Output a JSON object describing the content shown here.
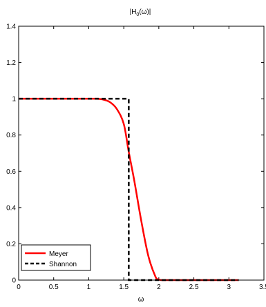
{
  "chart_data": {
    "type": "line",
    "title_main": "|H",
    "title_sub": "0",
    "title_rest": "(ω)|",
    "xlabel": "ω",
    "ylabel": "",
    "xlim": [
      0,
      3.5
    ],
    "ylim": [
      0,
      1.4
    ],
    "xticks": [
      0,
      0.5,
      1,
      1.5,
      2,
      2.5,
      3,
      3.5
    ],
    "xtick_labels": [
      "0",
      "0.5",
      "1",
      "1.5",
      "2",
      "2.5",
      "3",
      "3.5"
    ],
    "yticks": [
      0,
      0.2,
      0.4,
      0.6,
      0.8,
      1,
      1.2,
      1.4
    ],
    "ytick_labels": [
      "0",
      "0.2",
      "0.4",
      "0.6",
      "0.8",
      "1",
      "1.2",
      "1.4"
    ],
    "grid": false,
    "legend_position": "bottom-left",
    "series": [
      {
        "name": "Meyer",
        "color": "#ff0000",
        "style": "solid",
        "x": [
          0,
          1.047,
          1.1,
          1.2,
          1.3,
          1.4,
          1.5,
          1.571,
          1.65,
          1.75,
          1.85,
          1.95,
          2.0,
          2.094,
          2.5,
          3.0,
          3.14
        ],
        "y": [
          1,
          1,
          0.9998,
          0.996,
          0.982,
          0.944,
          0.861,
          0.707,
          0.548,
          0.326,
          0.134,
          0.021,
          0.003,
          0,
          0,
          0,
          0
        ]
      },
      {
        "name": "Shannon",
        "color": "#000000",
        "style": "dashed",
        "x": [
          0,
          1.571,
          1.571,
          3.14
        ],
        "y": [
          1,
          1,
          0,
          0
        ]
      }
    ]
  }
}
